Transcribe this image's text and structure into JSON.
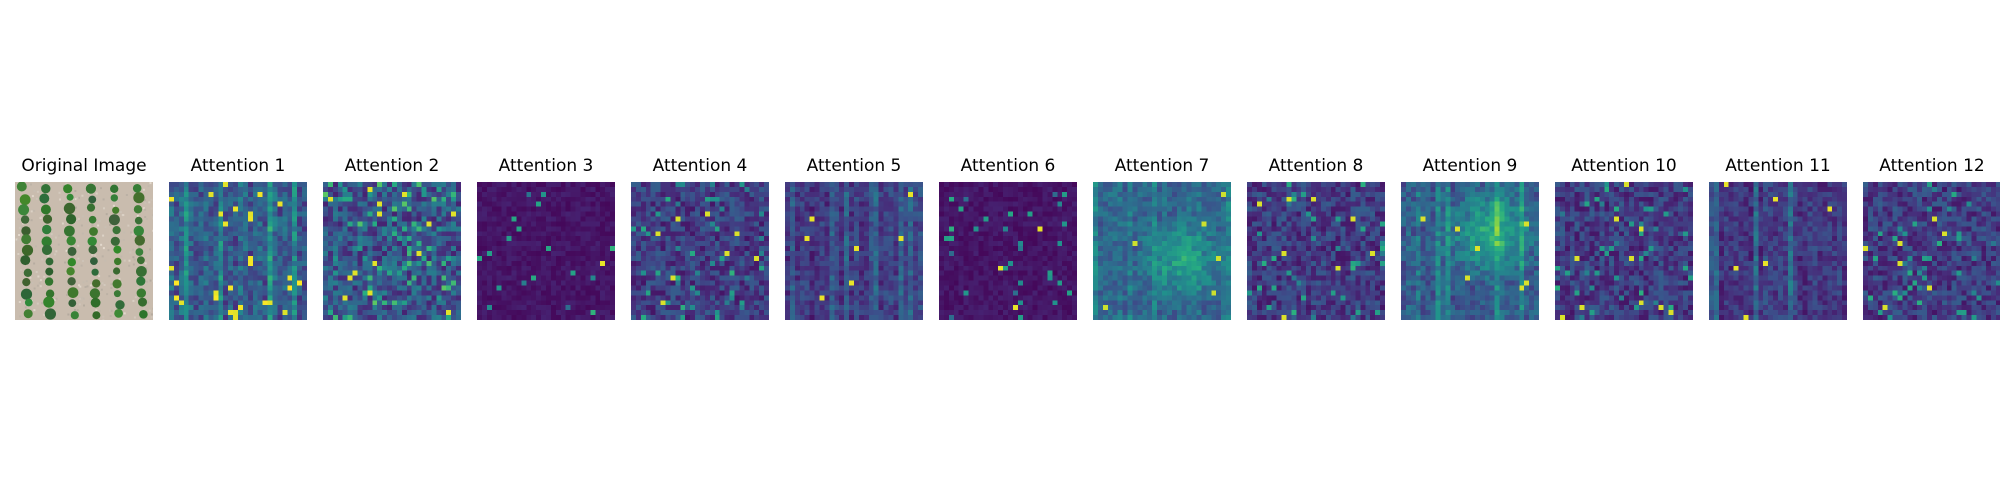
{
  "figure": {
    "panels": [
      {
        "title": "Original Image",
        "kind": "photo",
        "subject": "aerial view of orchard tree rows on pale soil"
      },
      {
        "title": "Attention 1",
        "kind": "heatmap",
        "seed": 11,
        "pattern": "stripes"
      },
      {
        "title": "Attention 2",
        "kind": "heatmap",
        "seed": 23,
        "pattern": "speckle-bright"
      },
      {
        "title": "Attention 3",
        "kind": "heatmap",
        "seed": 37,
        "pattern": "dark-sparse"
      },
      {
        "title": "Attention 4",
        "kind": "heatmap",
        "seed": 41,
        "pattern": "speckle"
      },
      {
        "title": "Attention 5",
        "kind": "heatmap",
        "seed": 53,
        "pattern": "stripes-dark"
      },
      {
        "title": "Attention 6",
        "kind": "heatmap",
        "seed": 67,
        "pattern": "dark-sparse"
      },
      {
        "title": "Attention 7",
        "kind": "heatmap",
        "seed": 71,
        "pattern": "diffuse"
      },
      {
        "title": "Attention 8",
        "kind": "heatmap",
        "seed": 83,
        "pattern": "speckle"
      },
      {
        "title": "Attention 9",
        "kind": "heatmap",
        "seed": 97,
        "pattern": "diffuse-bright"
      },
      {
        "title": "Attention 10",
        "kind": "heatmap",
        "seed": 101,
        "pattern": "speckle"
      },
      {
        "title": "Attention 11",
        "kind": "heatmap",
        "seed": 113,
        "pattern": "stripes-dark"
      },
      {
        "title": "Attention 12",
        "kind": "heatmap",
        "seed": 127,
        "pattern": "speckle"
      }
    ],
    "colormap": "viridis",
    "grid_size": 28,
    "colors": {
      "viridis_low": "#440154",
      "viridis_mid": "#21918c",
      "viridis_high": "#fde725",
      "soil": "#c9bcae",
      "tree": "#3f6b35"
    }
  }
}
